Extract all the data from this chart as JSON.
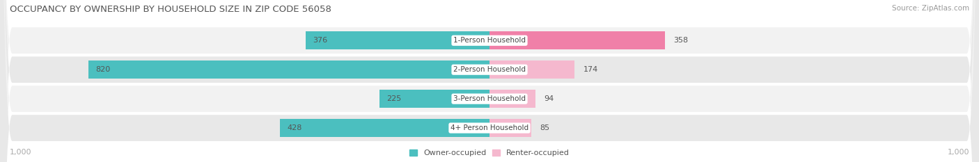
{
  "title": "OCCUPANCY BY OWNERSHIP BY HOUSEHOLD SIZE IN ZIP CODE 56058",
  "source": "Source: ZipAtlas.com",
  "categories": [
    "1-Person Household",
    "2-Person Household",
    "3-Person Household",
    "4+ Person Household"
  ],
  "owner_values": [
    376,
    820,
    225,
    428
  ],
  "renter_values": [
    358,
    174,
    94,
    85
  ],
  "max_scale": 1000,
  "owner_color": "#4BBFBF",
  "renter_color": "#F080A8",
  "renter_color_light": "#F5B8CE",
  "title_color": "#555555",
  "source_color": "#999999",
  "axis_label_color": "#AAAAAA",
  "value_color": "#555555",
  "value_color_white": "#FFFFFF",
  "legend_owner": "Owner-occupied",
  "legend_renter": "Renter-occupied",
  "bar_height": 0.62,
  "row_bg_colors": [
    "#F2F2F2",
    "#E8E8E8",
    "#F2F2F2",
    "#E8E8E8"
  ],
  "figsize": [
    14.06,
    2.33
  ],
  "dpi": 100
}
